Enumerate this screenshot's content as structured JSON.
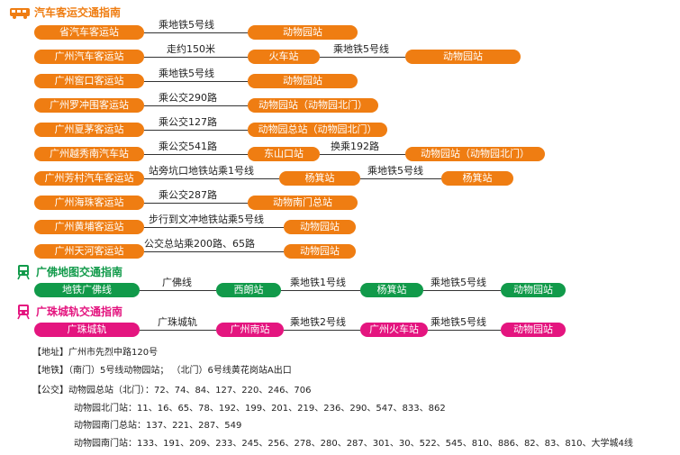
{
  "colors": {
    "orange": "#ef7d12",
    "green": "#119a4a",
    "magenta": "#e4157f"
  },
  "sections": {
    "bus": {
      "title": "汽车客运交通指南",
      "icon": "bus-icon"
    },
    "guangfo": {
      "title": "广佛地图交通指南",
      "icon": "train-icon"
    },
    "guangzhu": {
      "title": "广珠城轨交通指南",
      "icon": "train-icon"
    }
  },
  "bus_routes": [
    {
      "station": "省汽车客运站",
      "steps": [
        {
          "label": "乘地铁5号线",
          "dest": "动物园站"
        }
      ]
    },
    {
      "station": "广州汽车客运站",
      "steps": [
        {
          "label": "走约150米",
          "dest": "火车站"
        },
        {
          "label": "乘地铁5号线",
          "dest": "动物园站"
        }
      ]
    },
    {
      "station": "广州窖口客运站",
      "steps": [
        {
          "label": "乘地铁5号线",
          "dest": "动物园站"
        }
      ]
    },
    {
      "station": "广州罗冲围客运站",
      "steps": [
        {
          "label": "乘公交290路",
          "dest": "动物园站（动物园北门）"
        }
      ]
    },
    {
      "station": "广州夏茅客运站",
      "steps": [
        {
          "label": "乘公交127路",
          "dest": "动物园总站（动物园北门）"
        }
      ]
    },
    {
      "station": "广州越秀南汽车站",
      "steps": [
        {
          "label": "乘公交541路",
          "dest": "东山口站"
        },
        {
          "label": "换乘192路",
          "dest": "动物园站（动物园北门）"
        }
      ]
    },
    {
      "station": "广州芳村汽车客运站",
      "steps": [
        {
          "label": "站旁坑口地铁站乘1号线",
          "dest": "杨箕站"
        },
        {
          "label": "乘地铁5号线",
          "dest": "杨箕站"
        }
      ]
    },
    {
      "station": "广州海珠客运站",
      "steps": [
        {
          "label": "乘公交287路",
          "dest": "动物南门总站"
        }
      ]
    },
    {
      "station": "广州黄埔客运站",
      "steps": [
        {
          "label": "步行到文冲地铁站乘5号线",
          "dest": "动物园站"
        }
      ]
    },
    {
      "station": "广州天河客运站",
      "steps": [
        {
          "label": "公交总站乘200路、65路",
          "dest": "动物园站"
        }
      ]
    }
  ],
  "guangfo_route": {
    "start": "地铁广佛线",
    "steps": [
      {
        "label": "广佛线",
        "dest": "西朗站"
      },
      {
        "label": "乘地铁1号线",
        "dest": "杨箕站"
      },
      {
        "label": "乘地铁5号线",
        "dest": "动物园站"
      }
    ]
  },
  "guangzhu_route": {
    "start": "广珠城轨",
    "steps": [
      {
        "label": "广珠城轨",
        "dest": "广州南站"
      },
      {
        "label": "乘地铁2号线",
        "dest": "广州火车站"
      },
      {
        "label": "乘地铁5号线",
        "dest": "动物园站"
      }
    ]
  },
  "info": {
    "address": "【地址】广州市先烈中路120号",
    "metro": "【地铁】（南门）5号线动物园站；  （北门）6号线黄花岗站A出口",
    "bus": "【公交】动物园总站（北门）：72、74、84、127、220、246、706",
    "north_stop": "动物园北门站：11、16、65、78、192、199、201、219、236、290、547、833、862",
    "south_terminal": "动物园南门总站：137、221、287、549",
    "south_stop": "动物园南门站：133、191、209、233、245、256、278、280、287、301、30、522、545、810、886、82、83、810、大学城4线"
  }
}
